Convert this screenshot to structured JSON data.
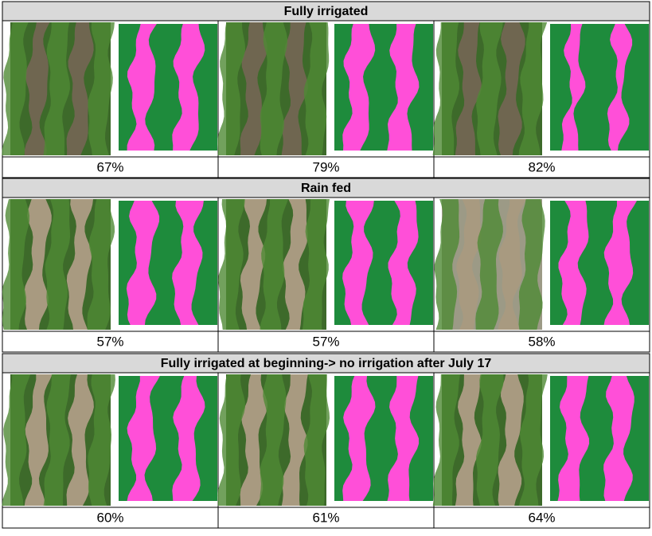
{
  "sections": [
    {
      "title": "Fully irrigated",
      "cells": [
        "67%",
        "79%",
        "82%"
      ]
    },
    {
      "title": "Rain fed",
      "cells": [
        "57%",
        "57%",
        "58%"
      ]
    },
    {
      "title": "Fully irrigated at beginning-> no irrigation after July 17",
      "cells": [
        "60%",
        "61%",
        "64%"
      ]
    }
  ]
}
